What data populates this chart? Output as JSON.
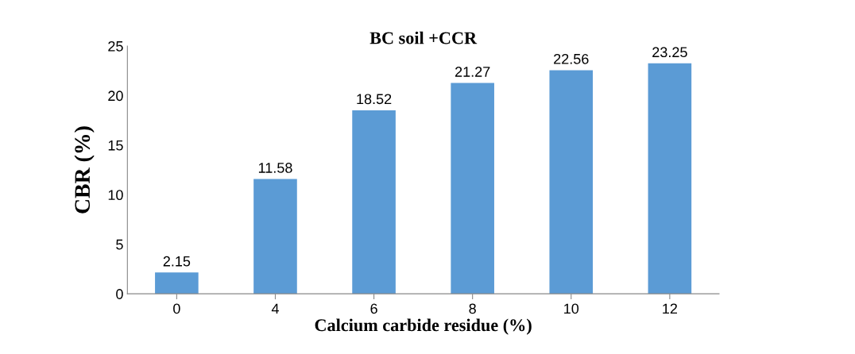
{
  "chart_data": {
    "type": "bar",
    "title": "BC soil +CCR",
    "xlabel": "Calcium carbide residue (%)",
    "ylabel": "CBR (%)",
    "categories": [
      "0",
      "4",
      "6",
      "8",
      "10",
      "12"
    ],
    "values": [
      2.15,
      11.58,
      18.52,
      21.27,
      22.56,
      23.25
    ],
    "color": "#5b9bd5",
    "ylim": [
      0,
      25
    ],
    "yticks": [
      0,
      5,
      10,
      15,
      20,
      25
    ],
    "grid": false,
    "data_labels": true
  }
}
